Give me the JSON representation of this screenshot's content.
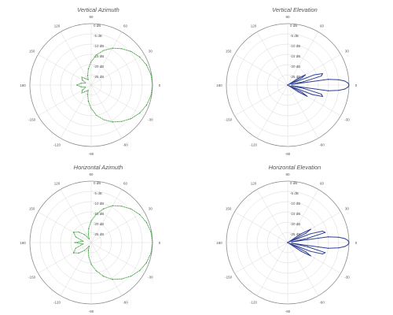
{
  "colors": {
    "green": "#3f9b3c",
    "blue": "#2e3f94",
    "grid": "#d9d9d9",
    "outer": "#8a8a8a",
    "text": "#555555"
  },
  "angle_labels": [
    "0",
    "30",
    "60",
    "90",
    "120",
    "150",
    "180",
    "-150",
    "-120",
    "-90",
    "-60",
    "-30"
  ],
  "angle_values": [
    0,
    30,
    60,
    90,
    120,
    150,
    180,
    -150,
    -120,
    -90,
    -60,
    -30
  ],
  "ring_labels": [
    "0 dB",
    "-5 dB",
    "-10 dB",
    "-15 dB",
    "-20 dB",
    "-25 dB",
    "-30 dB"
  ],
  "ring_values": [
    0,
    -5,
    -10,
    -15,
    -20,
    -25,
    -30
  ],
  "chart_data": [
    {
      "type": "polar",
      "title": "Vertical Azimuth",
      "series_color": "green",
      "rlim": [
        -30,
        0
      ],
      "angle_units": "degrees",
      "grid": true,
      "points": [
        [
          0,
          0
        ],
        [
          10,
          -0.3
        ],
        [
          20,
          -1.2
        ],
        [
          30,
          -2.6
        ],
        [
          40,
          -4.5
        ],
        [
          50,
          -6.8
        ],
        [
          60,
          -9.2
        ],
        [
          70,
          -12
        ],
        [
          80,
          -15
        ],
        [
          90,
          -18.5
        ],
        [
          100,
          -22
        ],
        [
          110,
          -25
        ],
        [
          120,
          -27
        ],
        [
          130,
          -26
        ],
        [
          140,
          -24
        ],
        [
          150,
          -25
        ],
        [
          160,
          -27
        ],
        [
          170,
          -25
        ],
        [
          180,
          -23
        ],
        [
          -170,
          -25
        ],
        [
          -160,
          -27
        ],
        [
          -150,
          -25
        ],
        [
          -140,
          -24
        ],
        [
          -130,
          -26
        ],
        [
          -120,
          -27
        ],
        [
          -110,
          -25
        ],
        [
          -100,
          -22
        ],
        [
          -90,
          -18.5
        ],
        [
          -80,
          -15
        ],
        [
          -70,
          -12
        ],
        [
          -60,
          -9.2
        ],
        [
          -50,
          -6.8
        ],
        [
          -40,
          -4.5
        ],
        [
          -30,
          -2.6
        ],
        [
          -20,
          -1.2
        ],
        [
          -10,
          -0.3
        ]
      ]
    },
    {
      "type": "polar",
      "title": "Vertical Elevation",
      "series_color": "blue",
      "rlim": [
        -30,
        0
      ],
      "angle_units": "degrees",
      "grid": true,
      "points": [
        [
          0,
          0
        ],
        [
          2,
          -0.5
        ],
        [
          4,
          -2
        ],
        [
          6,
          -5
        ],
        [
          8,
          -10
        ],
        [
          10,
          -28
        ],
        [
          12,
          -22
        ],
        [
          15,
          -13
        ],
        [
          18,
          -12
        ],
        [
          21,
          -16
        ],
        [
          24,
          -29
        ],
        [
          27,
          -22
        ],
        [
          30,
          -20
        ],
        [
          33,
          -24
        ],
        [
          36,
          -30
        ],
        [
          45,
          -30
        ],
        [
          90,
          -30
        ],
        [
          135,
          -30
        ],
        [
          180,
          -30
        ],
        [
          -135,
          -30
        ],
        [
          -90,
          -30
        ],
        [
          -45,
          -30
        ],
        [
          -36,
          -30
        ],
        [
          -33,
          -24
        ],
        [
          -30,
          -19
        ],
        [
          -27,
          -22
        ],
        [
          -24,
          -29
        ],
        [
          -21,
          -17
        ],
        [
          -18,
          -12
        ],
        [
          -15,
          -13
        ],
        [
          -12,
          -22
        ],
        [
          -10,
          -28
        ],
        [
          -8,
          -10
        ],
        [
          -6,
          -5
        ],
        [
          -4,
          -2
        ],
        [
          -2,
          -0.5
        ]
      ]
    },
    {
      "type": "polar",
      "title": "Horizontal Azimuth",
      "series_color": "green",
      "rlim": [
        -30,
        0
      ],
      "angle_units": "degrees",
      "grid": true,
      "points": [
        [
          0,
          0
        ],
        [
          10,
          -0.3
        ],
        [
          20,
          -1.2
        ],
        [
          30,
          -2.6
        ],
        [
          40,
          -4.5
        ],
        [
          50,
          -6.8
        ],
        [
          60,
          -9.2
        ],
        [
          70,
          -12.5
        ],
        [
          80,
          -16
        ],
        [
          90,
          -19.5
        ],
        [
          100,
          -23
        ],
        [
          110,
          -26
        ],
        [
          120,
          -28
        ],
        [
          130,
          -25
        ],
        [
          140,
          -22
        ],
        [
          150,
          -20
        ],
        [
          160,
          -22
        ],
        [
          170,
          -26
        ],
        [
          180,
          -22
        ],
        [
          -170,
          -26
        ],
        [
          -160,
          -22
        ],
        [
          -150,
          -20
        ],
        [
          -140,
          -22
        ],
        [
          -130,
          -25
        ],
        [
          -120,
          -28
        ],
        [
          -110,
          -26
        ],
        [
          -100,
          -23
        ],
        [
          -90,
          -19.5
        ],
        [
          -80,
          -16
        ],
        [
          -70,
          -12.5
        ],
        [
          -60,
          -9.2
        ],
        [
          -50,
          -6.8
        ],
        [
          -40,
          -4.5
        ],
        [
          -30,
          -2.6
        ],
        [
          -20,
          -1.2
        ],
        [
          -10,
          -0.3
        ]
      ]
    },
    {
      "type": "polar",
      "title": "Horizontal Elevation",
      "series_color": "blue",
      "rlim": [
        -30,
        0
      ],
      "angle_units": "degrees",
      "grid": true,
      "points": [
        [
          0,
          0
        ],
        [
          2,
          -0.5
        ],
        [
          4,
          -2
        ],
        [
          6,
          -5
        ],
        [
          8,
          -10
        ],
        [
          10,
          -28
        ],
        [
          12,
          -20
        ],
        [
          15,
          -11
        ],
        [
          18,
          -12
        ],
        [
          21,
          -18
        ],
        [
          24,
          -29
        ],
        [
          27,
          -20
        ],
        [
          30,
          -17
        ],
        [
          33,
          -22
        ],
        [
          36,
          -30
        ],
        [
          45,
          -30
        ],
        [
          90,
          -30
        ],
        [
          135,
          -30
        ],
        [
          180,
          -30
        ],
        [
          -135,
          -30
        ],
        [
          -90,
          -30
        ],
        [
          -45,
          -30
        ],
        [
          -36,
          -30
        ],
        [
          -33,
          -22
        ],
        [
          -30,
          -17
        ],
        [
          -27,
          -20
        ],
        [
          -24,
          -29
        ],
        [
          -21,
          -18
        ],
        [
          -18,
          -12
        ],
        [
          -15,
          -11
        ],
        [
          -12,
          -20
        ],
        [
          -10,
          -28
        ],
        [
          -8,
          -10
        ],
        [
          -6,
          -5
        ],
        [
          -4,
          -2
        ],
        [
          -2,
          -0.5
        ]
      ]
    }
  ]
}
